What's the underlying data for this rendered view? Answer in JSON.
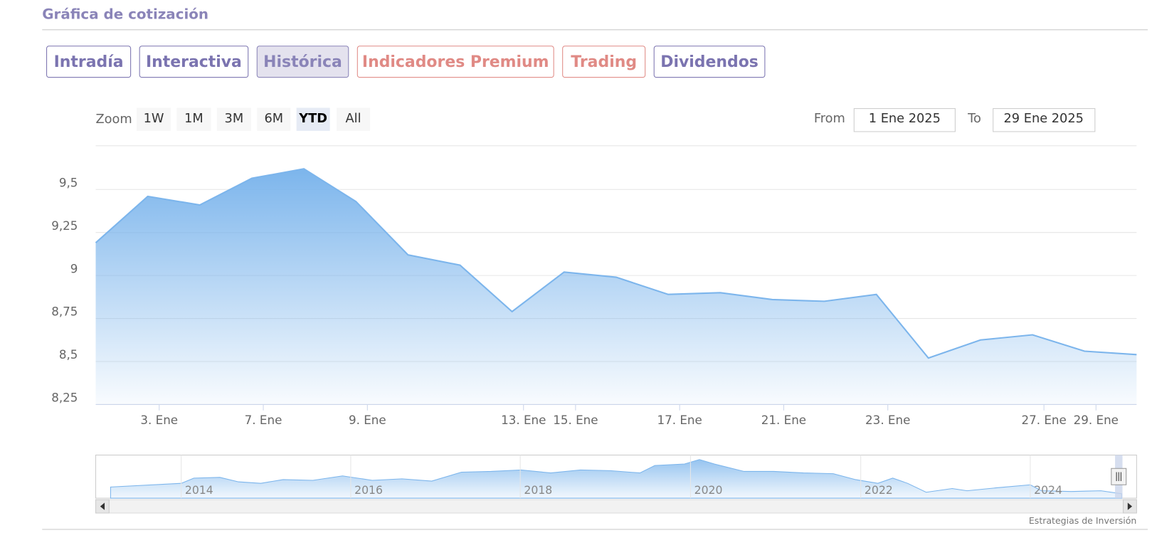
{
  "header": {
    "title": "Gráfica de cotización"
  },
  "tabs": [
    "Intradía",
    "Interactiva",
    "Histórica",
    "Indicadores Premium",
    "Trading",
    "Dividendos"
  ],
  "range_selector": {
    "label": "Zoom",
    "buttons": [
      "1W",
      "1M",
      "3M",
      "6M",
      "YTD",
      "All"
    ],
    "from_label": "From",
    "from": "1 Ene 2025",
    "to_label": "To",
    "to": "29 Ene 2025"
  },
  "chart_data": {
    "type": "area",
    "color": "#7cb5ec",
    "categories": [
      null,
      "3. Ene",
      null,
      "7. Ene",
      null,
      "9. Ene",
      null,
      null,
      "13. Ene",
      "15. Ene",
      null,
      "17. Ene",
      null,
      "21. Ene",
      null,
      "23. Ene",
      null,
      null,
      "27. Ene",
      "29. Ene",
      null
    ],
    "values": [
      9.19,
      9.46,
      9.41,
      9.565,
      9.62,
      9.43,
      9.12,
      9.06,
      8.79,
      9.02,
      8.99,
      8.89,
      8.9,
      8.86,
      8.85,
      8.89,
      8.52,
      8.625,
      8.655,
      8.56,
      8.54
    ],
    "ylim": [
      8.25,
      9.75
    ],
    "yticks": [
      {
        "value": 8.25,
        "label": "8,25"
      },
      {
        "value": 8.5,
        "label": "8,5"
      },
      {
        "value": 8.75,
        "label": "8,75"
      },
      9,
      {
        "value": 9.25,
        "label": "9,25"
      },
      {
        "value": 9.5,
        "label": "9,5"
      }
    ],
    "grid": true
  },
  "navigator": {
    "labels": [
      "2014",
      "2016",
      "2018",
      "2020",
      "2022",
      "2024"
    ]
  },
  "credits": "Estrategias de Inversión"
}
